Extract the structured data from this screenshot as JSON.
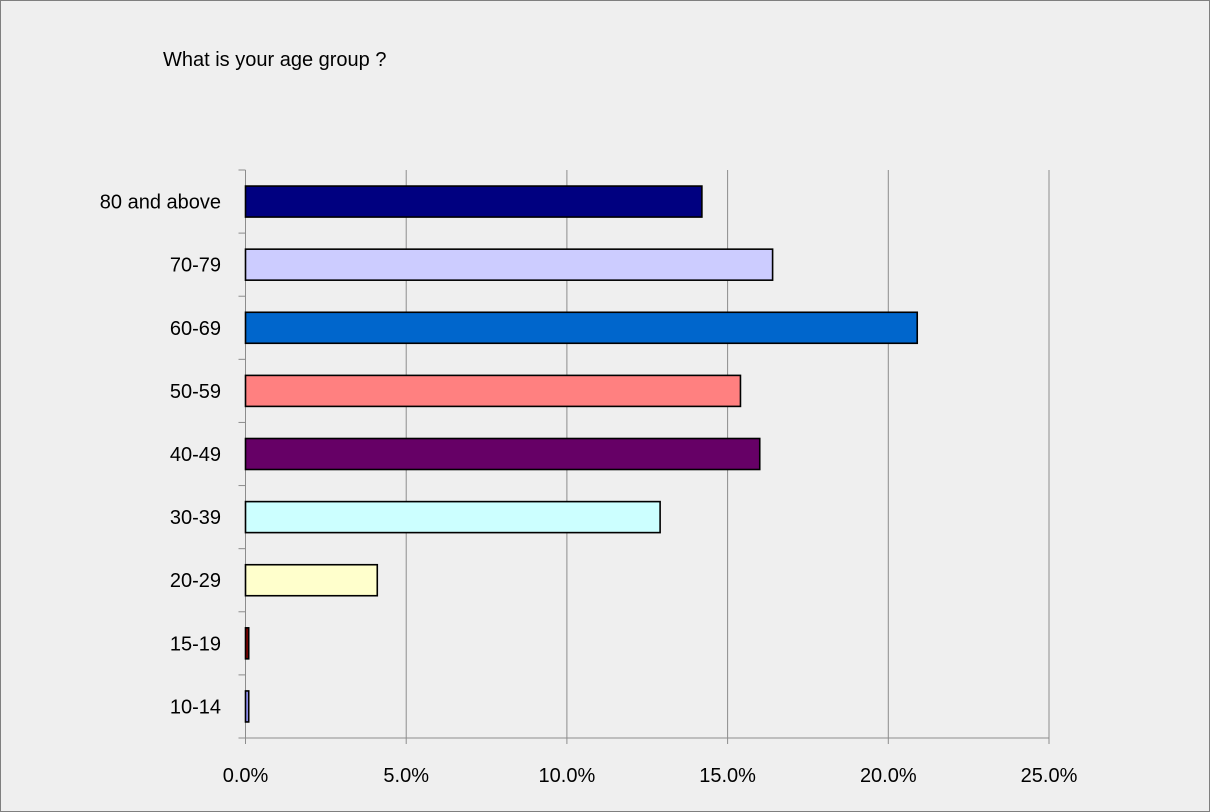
{
  "chart_data": {
    "type": "bar",
    "orientation": "horizontal",
    "title": "What is your age group ?",
    "xlabel": "",
    "ylabel": "",
    "categories": [
      "80 and above",
      "70-79",
      "60-69",
      "50-59",
      "40-49",
      "30-39",
      "20-29",
      "15-19",
      "10-14"
    ],
    "values": [
      14.2,
      16.4,
      20.9,
      15.4,
      16.0,
      12.9,
      4.1,
      0.1,
      0.1
    ],
    "value_unit": "percent",
    "colors": [
      "#000080",
      "#ccccff",
      "#0066cc",
      "#ff8080",
      "#660066",
      "#ccffff",
      "#ffffcc",
      "#800000",
      "#9999ff"
    ],
    "xlim": [
      0,
      25
    ],
    "xticks": [
      0,
      5,
      10,
      15,
      20,
      25
    ],
    "xtick_labels": [
      "0.0%",
      "5.0%",
      "10.0%",
      "15.0%",
      "20.0%",
      "25.0%"
    ],
    "grid": "vertical major gridlines",
    "legend": "none",
    "background": "#efefef"
  }
}
